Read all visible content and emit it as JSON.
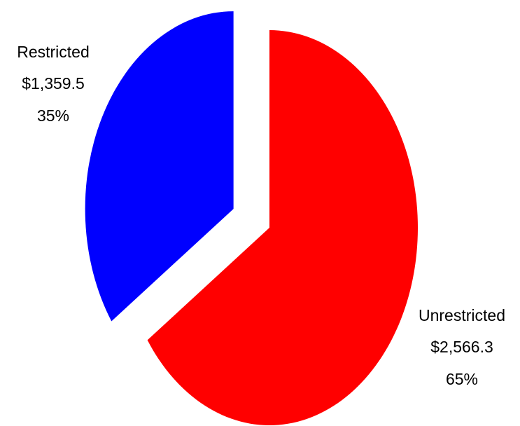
{
  "chart_data": {
    "type": "pie",
    "title": "",
    "slices": [
      {
        "name": "Unrestricted",
        "value": 2566.3,
        "value_label": "$2,566.3",
        "percent_label": "65%",
        "color": "#ff0000",
        "exploded": false
      },
      {
        "name": "Restricted",
        "value": 1359.5,
        "value_label": "$1,359.5",
        "percent_label": "35%",
        "color": "#0000ff",
        "exploded": true
      }
    ],
    "legend": "none",
    "start_angle": "12 o'clock, clockwise"
  }
}
